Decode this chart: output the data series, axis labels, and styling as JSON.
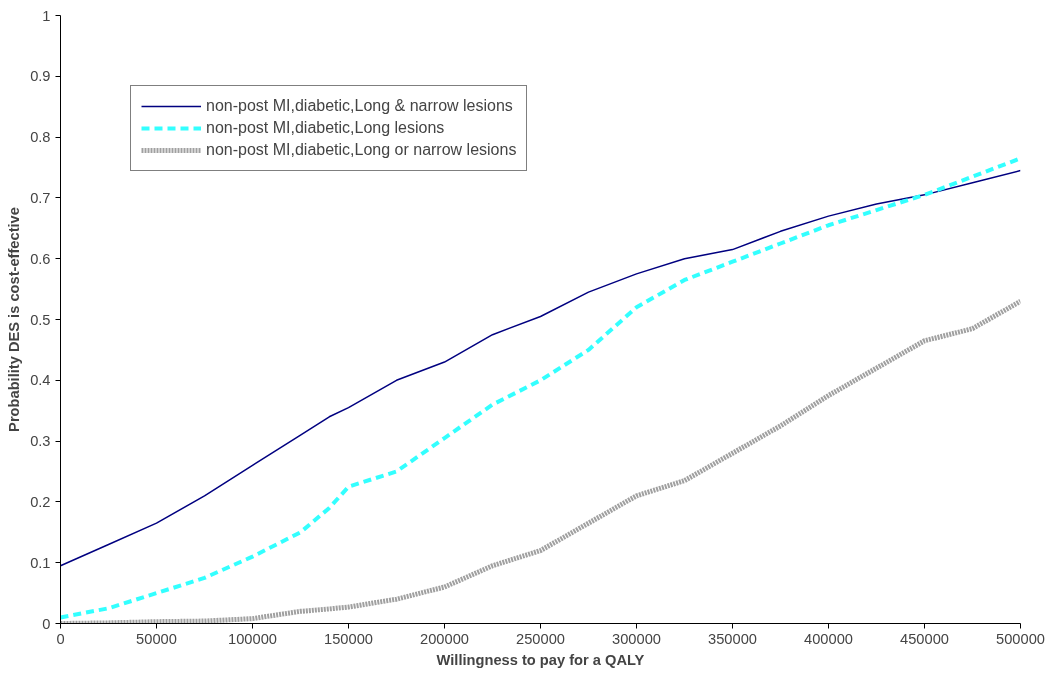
{
  "chart_data": {
    "type": "line",
    "xlabel": "Willingness to pay for a QALY",
    "ylabel": "Probability DES is cost-effective",
    "x": [
      0,
      25000,
      50000,
      75000,
      100000,
      125000,
      140000,
      150000,
      175000,
      200000,
      225000,
      250000,
      275000,
      300000,
      325000,
      350000,
      375000,
      400000,
      425000,
      450000,
      475000,
      500000
    ],
    "series": [
      {
        "name": "non-post MI,diabetic,Long & narrow lesions",
        "color": "#000080",
        "line_style": "solid",
        "values": [
          0.095,
          0.13,
          0.165,
          0.21,
          0.26,
          0.31,
          0.34,
          0.355,
          0.4,
          0.43,
          0.475,
          0.505,
          0.545,
          0.575,
          0.6,
          0.615,
          0.645,
          0.67,
          0.69,
          0.705,
          0.725,
          0.745
        ]
      },
      {
        "name": "non-post MI,diabetic,Long lesions",
        "color": "#33ffff",
        "line_style": "dashed",
        "values": [
          0.01,
          0.025,
          0.05,
          0.075,
          0.11,
          0.15,
          0.19,
          0.225,
          0.25,
          0.305,
          0.36,
          0.4,
          0.45,
          0.52,
          0.565,
          0.595,
          0.625,
          0.655,
          0.68,
          0.705,
          0.735,
          0.765
        ]
      },
      {
        "name": "non-post MI,diabetic,Long or narrow lesions",
        "color": "#a0a0a0",
        "line_style": "dotted",
        "values": [
          0,
          0.001,
          0.003,
          0.004,
          0.008,
          0.02,
          0.024,
          0.027,
          0.04,
          0.06,
          0.095,
          0.12,
          0.165,
          0.21,
          0.235,
          0.28,
          0.325,
          0.375,
          0.42,
          0.465,
          0.485,
          0.53
        ]
      }
    ],
    "xlim": [
      0,
      500000
    ],
    "xticks": [
      0,
      50000,
      100000,
      150000,
      200000,
      250000,
      300000,
      350000,
      400000,
      450000,
      500000
    ],
    "ylim": [
      0,
      1
    ],
    "yticks": [
      0,
      0.1,
      0.2,
      0.3,
      0.4,
      0.5,
      0.6,
      0.7,
      0.8,
      0.9,
      1
    ],
    "grid": false,
    "legend": "top left",
    "marker": "none"
  }
}
